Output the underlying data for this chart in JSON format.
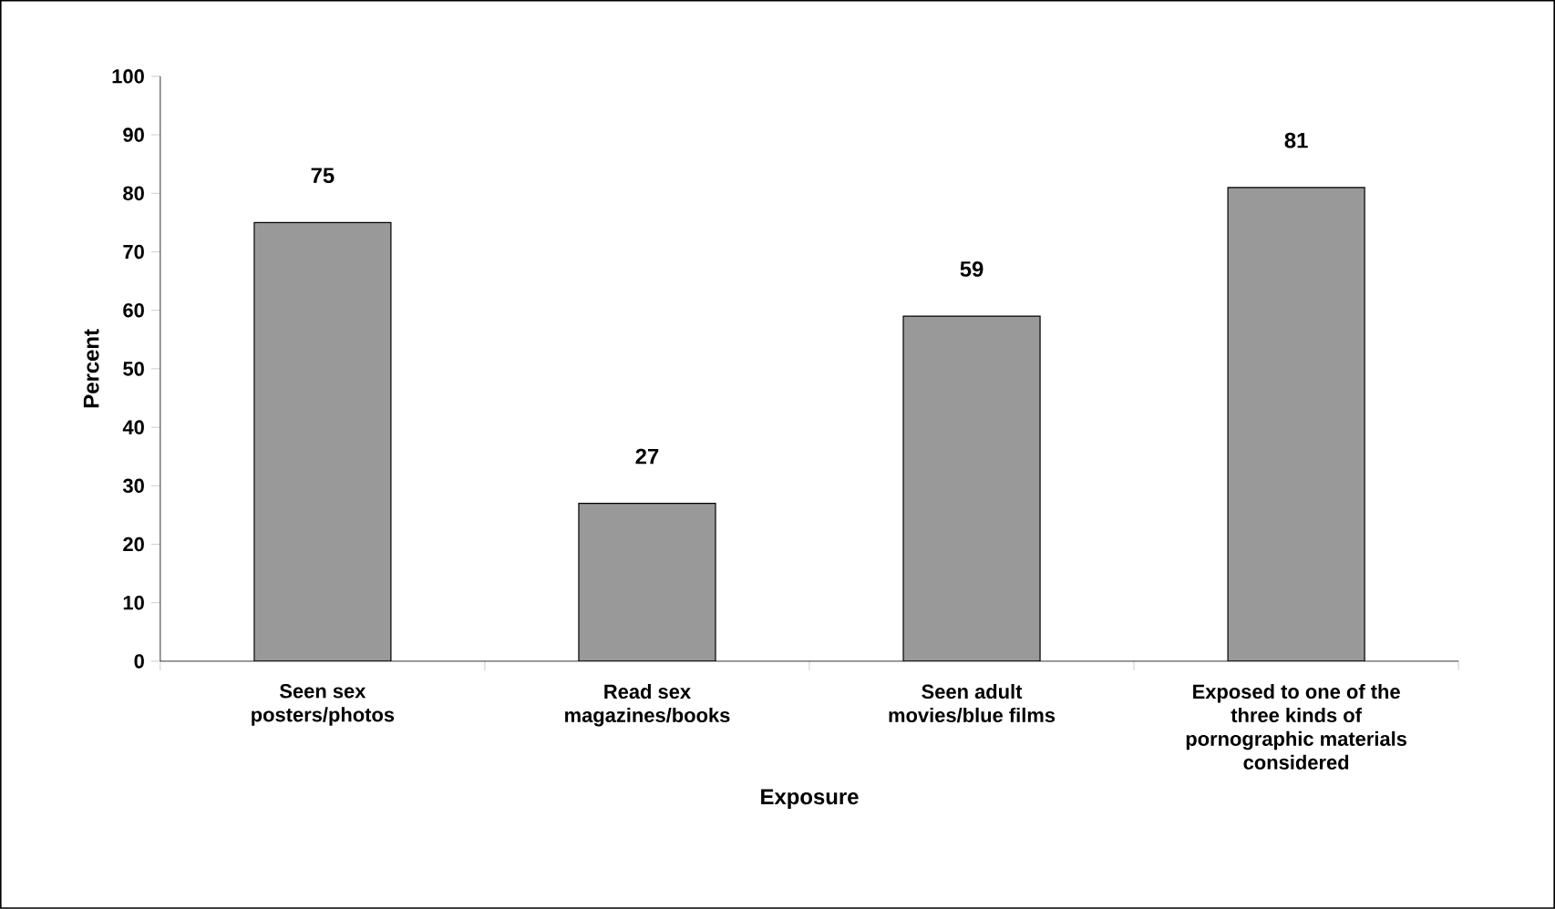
{
  "chart_data": {
    "type": "bar",
    "categories": [
      "Seen sex posters/photos",
      "Read sex magazines/books",
      "Seen adult movies/blue films",
      "Exposed to one of the three kinds of pornographic materials considered"
    ],
    "values": [
      75,
      27,
      59,
      81
    ],
    "color": "#999999",
    "xlabel": "Exposure",
    "ylabel": "Percent",
    "ylim": [
      0,
      100
    ],
    "yticks": [
      0,
      10,
      20,
      30,
      40,
      50,
      60,
      70,
      80,
      90,
      100
    ],
    "data_labels": true
  }
}
